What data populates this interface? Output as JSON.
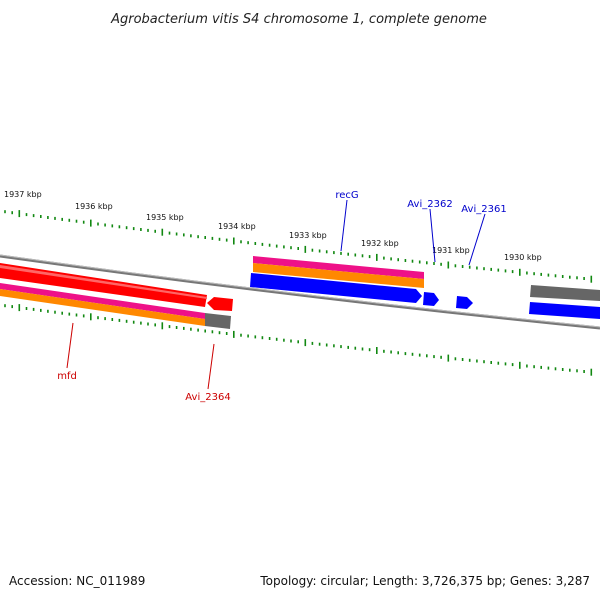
{
  "title": "Agrobacterium vitis S4 chromosome 1, complete genome",
  "ruler_labels": [
    "1937 kbp",
    "1936 kbp",
    "1935 kbp",
    "1934 kbp",
    "1933 kbp",
    "1932 kbp",
    "1931 kbp",
    "1930 kbp"
  ],
  "genes": {
    "recG": "recG",
    "avi2362": "Avi_2362",
    "avi2361": "Avi_2361",
    "mfd": "mfd",
    "avi2364": "Avi_2364"
  },
  "colors": {
    "forward_label": "#0000cc",
    "reverse_label": "#cc0000",
    "ticks": "#118811",
    "cds_blue": "#0000ff",
    "cds_red": "#ff0000",
    "pink": "#ee1188",
    "orange": "#ff8800",
    "grey": "#666666"
  },
  "footer": {
    "accession": "Accession: NC_011989",
    "summary": "Topology: circular; Length: 3,726,375 bp; Genes: 3,287"
  }
}
